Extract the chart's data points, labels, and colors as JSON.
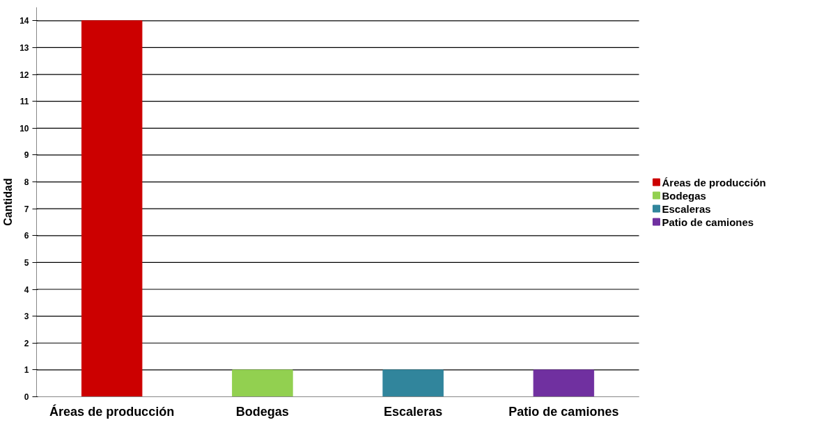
{
  "chart_data": {
    "type": "bar",
    "ylabel": "Cantidad",
    "stacked": true,
    "categories": [
      "Áreas de producción",
      "Bodegas",
      "Escaleras",
      "Patio de camiones"
    ],
    "series": [
      {
        "name": "Áreas de producción",
        "color": "#cc0000",
        "values": [
          14,
          null,
          null,
          null
        ]
      },
      {
        "name": "Bodegas",
        "color": "#92d050",
        "values": [
          null,
          1,
          null,
          null
        ]
      },
      {
        "name": "Escaleras",
        "color": "#31859c",
        "values": [
          null,
          null,
          1,
          null
        ]
      },
      {
        "name": "Patio de camiones",
        "color": "#7030a0",
        "values": [
          null,
          null,
          null,
          1
        ]
      }
    ],
    "ylim": [
      0,
      14.5
    ],
    "yticks": [
      0,
      1,
      2,
      3,
      4,
      5,
      6,
      7,
      8,
      9,
      10,
      11,
      12,
      13,
      14
    ],
    "grid": "y",
    "legend": "right"
  }
}
